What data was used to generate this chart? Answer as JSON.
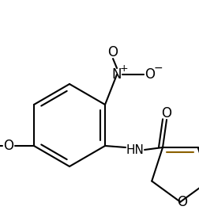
{
  "bg_color": "#ffffff",
  "line_color": "#000000",
  "bond_lw": 1.5,
  "font_size": 10,
  "furan_double_color": "#8B6000",
  "xlim": [
    0,
    252
  ],
  "ylim": [
    0,
    270
  ]
}
